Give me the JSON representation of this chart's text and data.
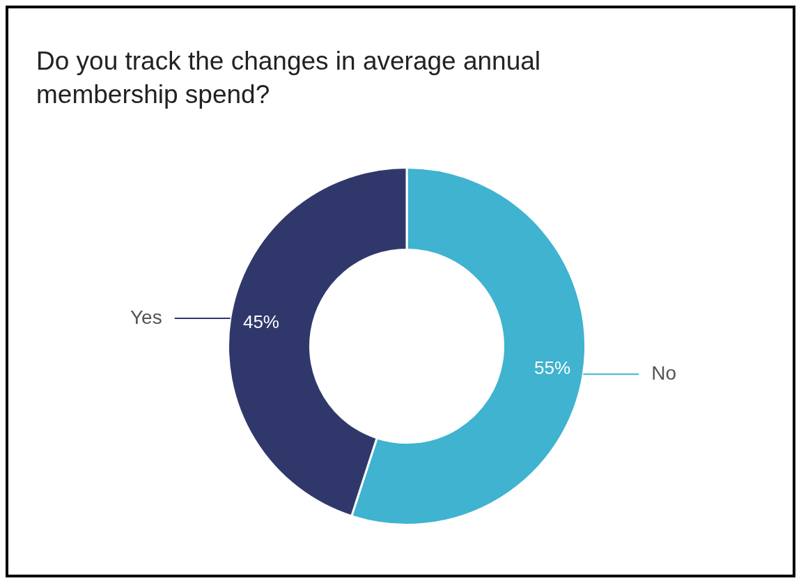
{
  "chart_data": {
    "type": "donut",
    "title": "Do you track the changes in average annual membership spend?",
    "categories": [
      "No",
      "Yes"
    ],
    "values": [
      55,
      45
    ],
    "colors": [
      "#3fb3cf",
      "#30386b"
    ],
    "value_labels": [
      "55%",
      "45%"
    ],
    "legend": false
  }
}
